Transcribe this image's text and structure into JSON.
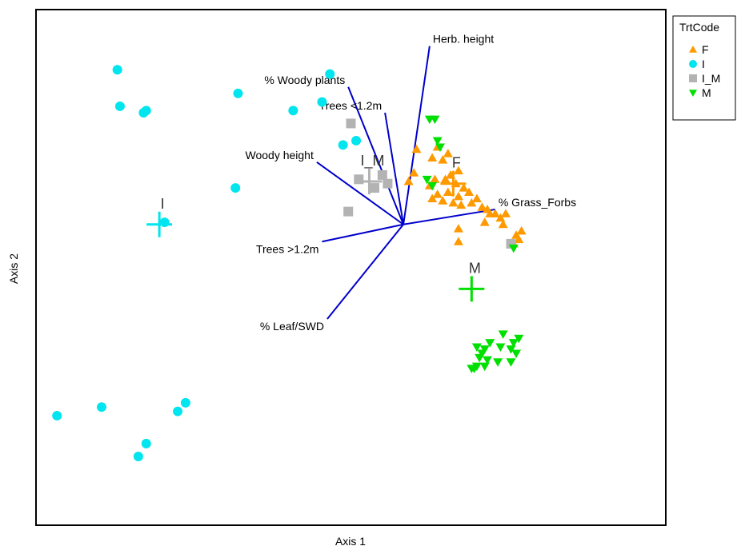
{
  "chart_data": {
    "type": "scatter",
    "title": "",
    "xlabel": "Axis 1",
    "ylabel": "Axis 2",
    "xlim": [
      -1.4,
      1.0
    ],
    "ylim": [
      -1.4,
      1.0
    ],
    "grid": false,
    "legend": {
      "title": "TrtCode",
      "placement": "top-right",
      "entries": [
        {
          "label": "F",
          "marker": "triangle-up",
          "color": "#ff9900"
        },
        {
          "label": "I",
          "marker": "circle",
          "color": "#00e5ee"
        },
        {
          "label": "I_M",
          "marker": "square",
          "color": "#b3b3b3"
        },
        {
          "label": "M",
          "marker": "triangle-down",
          "color": "#00e000"
        }
      ]
    },
    "series": [
      {
        "name": "F",
        "marker": "triangle-up",
        "color": "#ff9900",
        "points": [
          [
            0.05,
            0.35
          ],
          [
            0.13,
            0.36
          ],
          [
            0.17,
            0.33
          ],
          [
            0.11,
            0.31
          ],
          [
            0.15,
            0.3
          ],
          [
            0.18,
            0.23
          ],
          [
            0.21,
            0.25
          ],
          [
            0.04,
            0.24
          ],
          [
            0.02,
            0.2
          ],
          [
            0.12,
            0.21
          ],
          [
            0.16,
            0.21
          ],
          [
            0.2,
            0.19
          ],
          [
            0.23,
            0.17
          ],
          [
            0.1,
            0.18
          ],
          [
            0.13,
            0.14
          ],
          [
            0.17,
            0.15
          ],
          [
            0.21,
            0.13
          ],
          [
            0.25,
            0.15
          ],
          [
            0.28,
            0.12
          ],
          [
            0.15,
            0.11
          ],
          [
            0.19,
            0.1
          ],
          [
            0.22,
            0.09
          ],
          [
            0.26,
            0.1
          ],
          [
            0.11,
            0.12
          ],
          [
            0.3,
            0.08
          ],
          [
            0.33,
            0.05
          ],
          [
            0.35,
            0.05
          ],
          [
            0.37,
            0.03
          ],
          [
            0.31,
            0.01
          ],
          [
            0.38,
            0.0
          ],
          [
            0.21,
            -0.02
          ],
          [
            0.43,
            -0.05
          ],
          [
            0.45,
            -0.03
          ],
          [
            0.42,
            -0.09
          ],
          [
            0.21,
            -0.08
          ],
          [
            0.44,
            -0.07
          ],
          [
            0.39,
            0.05
          ],
          [
            0.32,
            0.07
          ]
        ]
      },
      {
        "name": "I",
        "marker": "circle",
        "color": "#00e5ee",
        "points": [
          [
            -1.09,
            0.72
          ],
          [
            -1.08,
            0.55
          ],
          [
            -0.99,
            0.52
          ],
          [
            -0.98,
            0.53
          ],
          [
            -0.63,
            0.61
          ],
          [
            -0.42,
            0.53
          ],
          [
            -0.28,
            0.7
          ],
          [
            -0.31,
            0.57
          ],
          [
            -0.23,
            0.37
          ],
          [
            -0.18,
            0.39
          ],
          [
            -0.64,
            0.17
          ],
          [
            -0.91,
            0.01
          ],
          [
            -1.32,
            -0.89
          ],
          [
            -1.15,
            -0.85
          ],
          [
            -0.98,
            -1.02
          ],
          [
            -1.01,
            -1.08
          ],
          [
            -0.83,
            -0.83
          ],
          [
            -0.86,
            -0.87
          ]
        ]
      },
      {
        "name": "I_M",
        "marker": "square",
        "color": "#b3b3b3",
        "points": [
          [
            -0.2,
            0.47
          ],
          [
            -0.17,
            0.21
          ],
          [
            -0.11,
            0.17
          ],
          [
            -0.08,
            0.23
          ],
          [
            -0.06,
            0.19
          ],
          [
            -0.21,
            0.06
          ],
          [
            0.41,
            -0.09
          ]
        ]
      },
      {
        "name": "M",
        "marker": "triangle-down",
        "color": "#00e000",
        "points": [
          [
            0.1,
            0.49
          ],
          [
            0.12,
            0.49
          ],
          [
            0.13,
            0.39
          ],
          [
            0.14,
            0.36
          ],
          [
            0.09,
            0.21
          ],
          [
            0.11,
            0.18
          ],
          [
            0.42,
            -0.11
          ],
          [
            0.38,
            -0.51
          ],
          [
            0.33,
            -0.55
          ],
          [
            0.37,
            -0.57
          ],
          [
            0.42,
            -0.55
          ],
          [
            0.41,
            -0.58
          ],
          [
            0.44,
            -0.53
          ],
          [
            0.43,
            -0.6
          ],
          [
            0.31,
            -0.58
          ],
          [
            0.28,
            -0.57
          ],
          [
            0.29,
            -0.62
          ],
          [
            0.41,
            -0.64
          ],
          [
            0.36,
            -0.64
          ],
          [
            0.28,
            -0.66
          ],
          [
            0.27,
            -0.67
          ],
          [
            0.32,
            -0.63
          ],
          [
            0.31,
            -0.66
          ],
          [
            0.26,
            -0.67
          ],
          [
            0.3,
            -0.6
          ]
        ]
      }
    ],
    "centroids": [
      {
        "label": "F",
        "color": "#ff9900",
        "x": 0.19,
        "y": 0.19
      },
      {
        "label": "I",
        "color": "#00e5ee",
        "x": -0.93,
        "y": 0.0
      },
      {
        "label": "I_M",
        "color": "#b3b3b3",
        "x": -0.13,
        "y": 0.2
      },
      {
        "label": "M",
        "color": "#00e000",
        "x": 0.26,
        "y": -0.3
      }
    ],
    "vectors_origin": [
      0.0,
      0.0
    ],
    "vectors_color": "#0000cc",
    "vectors": [
      {
        "label": "Herb. height",
        "x": 0.1,
        "y": 0.83
      },
      {
        "label": "% Woody plants",
        "x": -0.21,
        "y": 0.64
      },
      {
        "label": "Trees <1.2m",
        "x": -0.07,
        "y": 0.52
      },
      {
        "label": "Woody height",
        "x": -0.33,
        "y": 0.29
      },
      {
        "label": "% Grass_Forbs",
        "x": 0.35,
        "y": 0.07
      },
      {
        "label": "Trees >1.2m",
        "x": -0.31,
        "y": -0.08
      },
      {
        "label": "% Leaf/SWD",
        "x": -0.29,
        "y": -0.44
      }
    ]
  }
}
